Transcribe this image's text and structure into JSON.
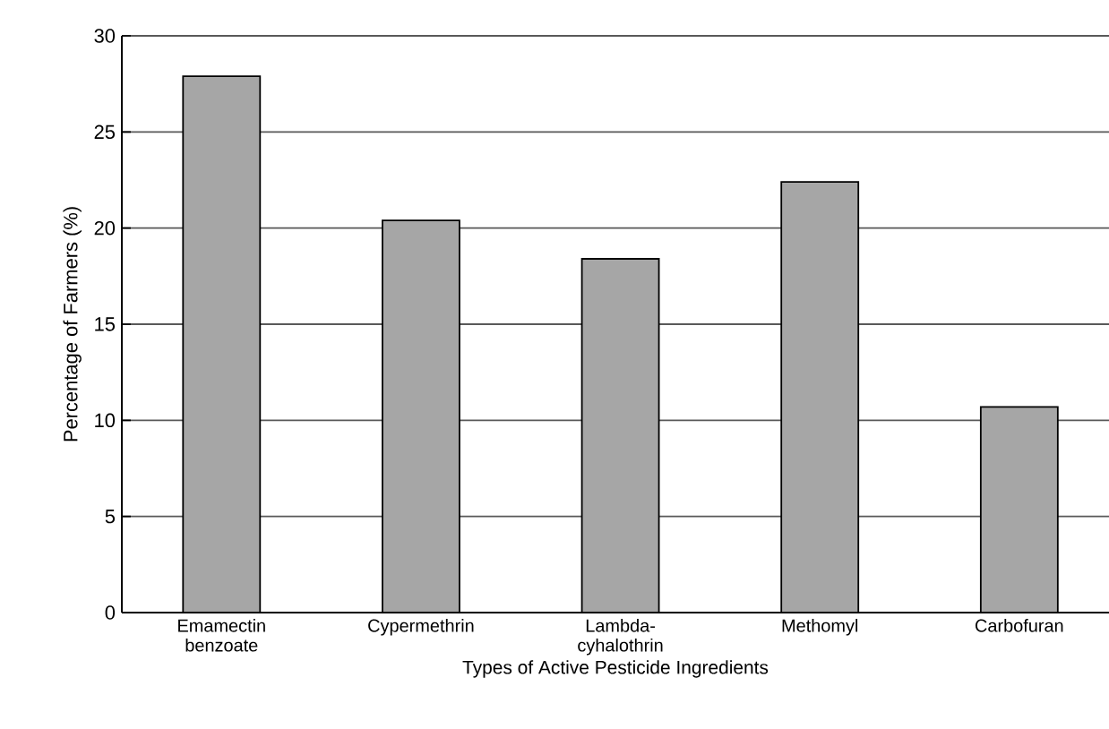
{
  "chart_data": {
    "type": "bar",
    "xlabel": "Types of Active Pesticide Ingredients",
    "ylabel": "Percentage of Farmers (%)",
    "categories": [
      "Emamectin benzoate",
      "Cypermethrin",
      "Lambda-cyhalothrin",
      "Methomyl",
      "Carbofuran"
    ],
    "values": [
      27.9,
      20.4,
      18.4,
      22.4,
      10.7
    ],
    "color": "#a6a6a6",
    "ylim": [
      0,
      30
    ],
    "yticks": [
      0,
      5,
      10,
      15,
      20,
      25,
      30
    ],
    "grid": "y"
  }
}
